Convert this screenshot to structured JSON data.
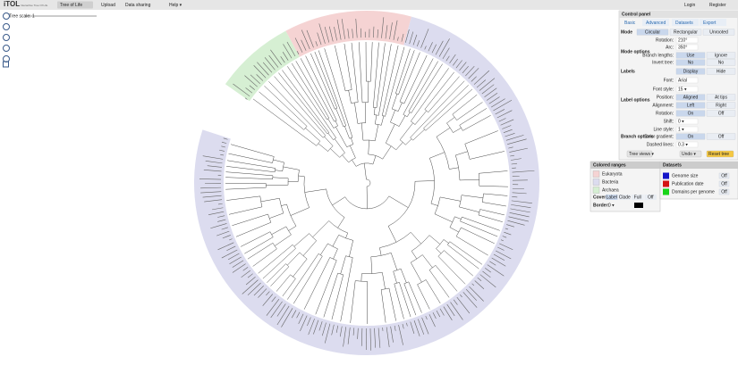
{
  "header": {
    "logo": "iTOL",
    "tagline": "Interactive Tree Of Life",
    "nav": [
      "Tree of Life",
      "Upload",
      "Data sharing",
      "Help ▾"
    ],
    "account": [
      "Login",
      "Register"
    ]
  },
  "tree_scale": "Tree scale: 1",
  "control_panel": {
    "title": "Control panel",
    "tabs": [
      "Basic",
      "Advanced",
      "Datasets",
      "Export"
    ],
    "groups": [
      "Mode",
      "Mode options",
      "Labels",
      "Label options",
      "Branch options"
    ],
    "mode": [
      "Circular",
      "Rectangular",
      "Unrooted"
    ],
    "rows": [
      {
        "label": "Rotation:",
        "value": "210°"
      },
      {
        "label": "Arc:",
        "value": "350°"
      },
      {
        "label": "Branch lengths:",
        "options": [
          "Use",
          "Ignore"
        ]
      },
      {
        "label": "Invert tree:",
        "options": [
          "No",
          "No"
        ]
      },
      {
        "options": [
          "Display",
          "Hide"
        ]
      },
      {
        "label": "Font:",
        "value": "Arial"
      },
      {
        "label": "Font style:",
        "value": "15 ▾"
      },
      {
        "label": "Position:",
        "options": [
          "Aligned",
          "At tips"
        ]
      },
      {
        "label": "Alignment:",
        "options": [
          "Left",
          "Right"
        ]
      },
      {
        "label": "Rotation:",
        "options": [
          "On",
          "Off"
        ]
      },
      {
        "label": "Shift:",
        "value": "0 ▾"
      },
      {
        "label": "Line style:",
        "value": "1 ▾"
      },
      {
        "label": "Color gradient:",
        "options": [
          "On",
          "Off"
        ]
      },
      {
        "label": "Dashed lines:",
        "value": "0.3 ▾"
      }
    ],
    "buttons": [
      "Tree views ▾",
      "Undo ▾",
      "Reset tree"
    ]
  },
  "colored_ranges": {
    "title": "Colored ranges",
    "items": [
      {
        "name": "Eukaryota",
        "color": "#f5d3d3"
      },
      {
        "name": "Bacteria",
        "color": "#dcdcef"
      },
      {
        "name": "Archaea",
        "color": "#d6efd3"
      }
    ],
    "cover_label": "Cover:",
    "cover_options": [
      "Label",
      "Clade",
      "Full",
      "Off"
    ],
    "border_label": "Border:",
    "border_value": "0 ▾"
  },
  "datasets": {
    "title": "Datasets",
    "items": [
      {
        "name": "Genome size",
        "color": "#1414c8",
        "state": "Off"
      },
      {
        "name": "Publication date",
        "color": "#d41414",
        "state": "Off"
      },
      {
        "name": "Domains per genome",
        "color": "#18d418",
        "state": "Off"
      }
    ]
  }
}
